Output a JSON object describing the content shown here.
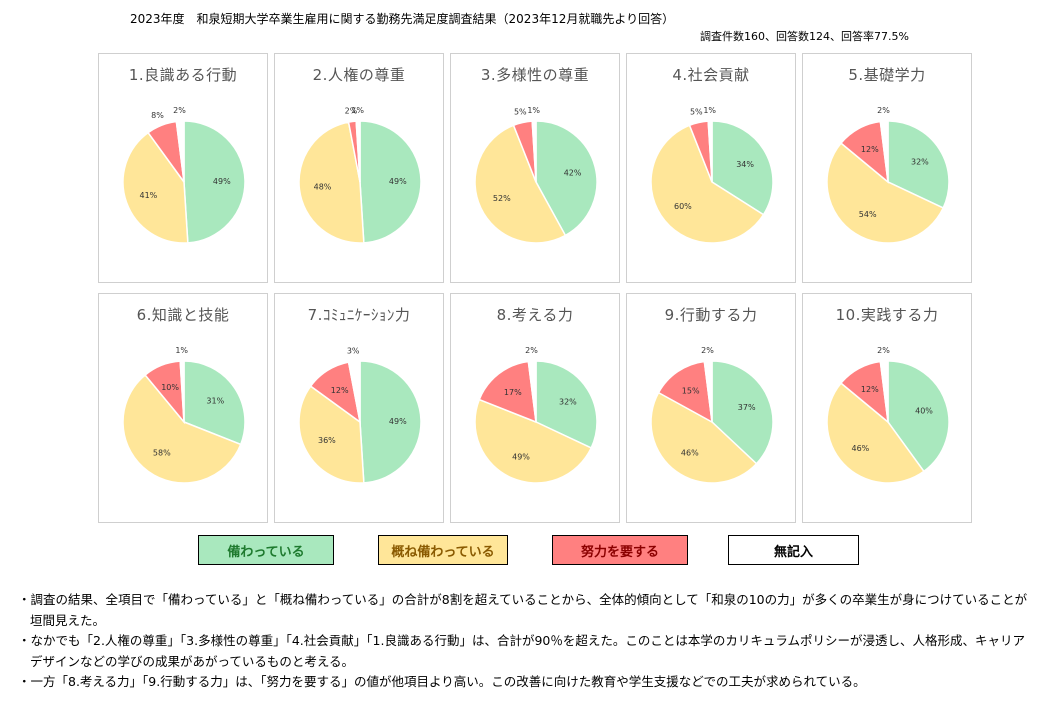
{
  "header": {
    "title": "2023年度　和泉短期大学卒業生雇用に関する勤務先満足度調査結果（2023年12月就職先より回答）",
    "subtitle": "調査件数160、回答数124、回答率77.5%"
  },
  "legend": [
    {
      "label": "備わっている",
      "color": "#A9E8BE",
      "text_color": "#1E7A2E"
    },
    {
      "label": "概ね備わっている",
      "color": "#FFE699",
      "text_color": "#8A5A00"
    },
    {
      "label": "努力を要する",
      "color": "#FF8080",
      "text_color": "#8B0000"
    },
    {
      "label": "無記入",
      "color": "#FFFFFF",
      "text_color": "#000000"
    }
  ],
  "chart_data": [
    {
      "type": "pie",
      "title": "1.良識ある行動",
      "values": [
        49,
        41,
        8,
        2
      ]
    },
    {
      "type": "pie",
      "title": "2.人権の尊重",
      "values": [
        49,
        48,
        2,
        1
      ]
    },
    {
      "type": "pie",
      "title": "3.多様性の尊重",
      "values": [
        42,
        52,
        5,
        1
      ]
    },
    {
      "type": "pie",
      "title": "4.社会貢献",
      "values": [
        34,
        60,
        5,
        1
      ]
    },
    {
      "type": "pie",
      "title": "5.基礎学力",
      "values": [
        32,
        54,
        12,
        2
      ]
    },
    {
      "type": "pie",
      "title": "6.知識と技能",
      "values": [
        31,
        58,
        10,
        1
      ]
    },
    {
      "type": "pie",
      "title": "7.ｺﾐｭﾆｹｰｼｮﾝ力",
      "values": [
        49,
        36,
        12,
        3
      ]
    },
    {
      "type": "pie",
      "title": "8.考える力",
      "values": [
        32,
        49,
        17,
        2
      ]
    },
    {
      "type": "pie",
      "title": "9.行動する力",
      "values": [
        37,
        46,
        15,
        2
      ]
    },
    {
      "type": "pie",
      "title": "10.実践する力",
      "values": [
        40,
        46,
        12,
        2
      ]
    }
  ],
  "notes": [
    "・調査の結果、全項目で「備わっている」と「概ね備わっている」の合計が8割を超えていることから、全体的傾向として「和泉の10の力」が多くの卒業生が身につけていることが垣間見えた。",
    "・なかでも「2.人権の尊重」「3.多様性の尊重」「4.社会貢献」「1.良識ある行動」は、合計が90％を超えた。このことは本学のカリキュラムポリシーが浸透し、人格形成、キャリアデザインなどの学びの成果があがっているものと考える。",
    "・一方「8.考える力」「9.行動する力」は、「努力を要する」の値が他項目より高い。この改善に向けた教育や学生支援などでの工夫が求められている。"
  ]
}
